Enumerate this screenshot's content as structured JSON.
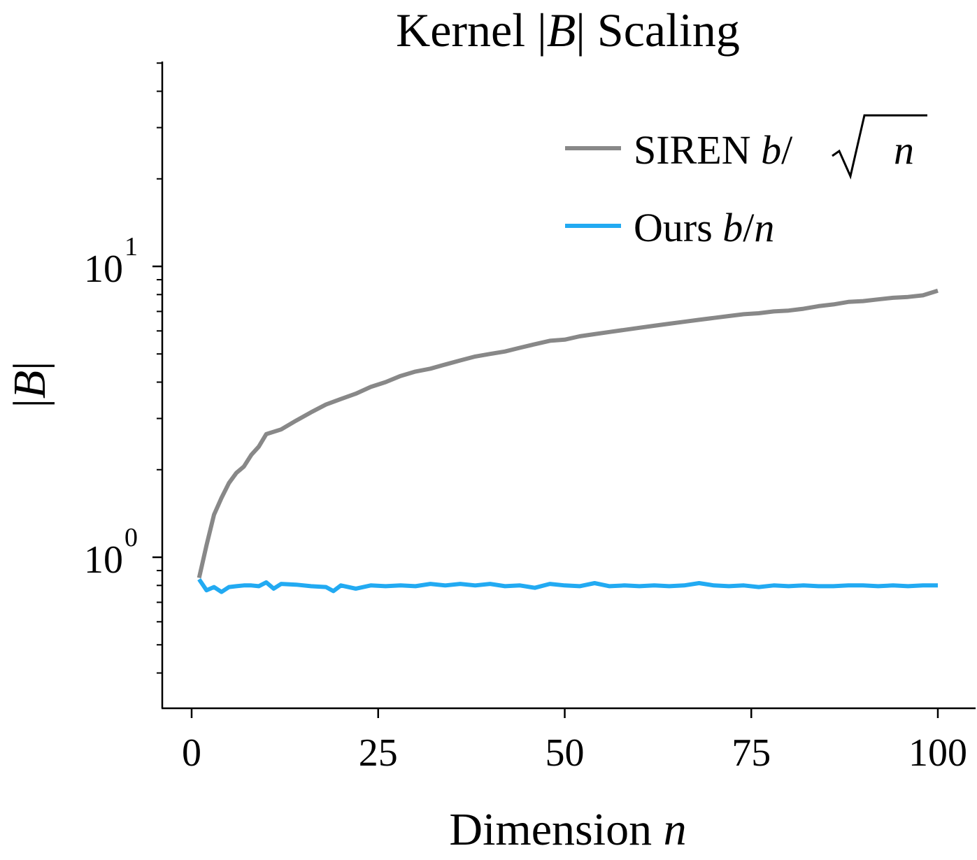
{
  "chart_data": {
    "type": "line",
    "title": {
      "prefix": "Kernel |",
      "symbol": "B",
      "suffix": "| Scaling"
    },
    "xlabel": {
      "text": "Dimension ",
      "var": "n"
    },
    "ylabel": {
      "left": "|",
      "var": "B",
      "right": "|"
    },
    "x_ticks": [
      0,
      25,
      50,
      75,
      100
    ],
    "y_ticks": [
      {
        "base": "10",
        "exp": "0",
        "value": 1
      },
      {
        "base": "10",
        "exp": "1",
        "value": 10
      }
    ],
    "xlim": [
      -2,
      105
    ],
    "ylim": [
      0.35,
      52
    ],
    "y_scale": "log",
    "grid": false,
    "legend_position": "top-right",
    "series": [
      {
        "name": "SIREN b/√n",
        "legend": {
          "text": "SIREN ",
          "b": "b",
          "slash": "/",
          "n": "n"
        },
        "color": "#888888",
        "x": [
          1,
          2,
          3,
          4,
          5,
          6,
          7,
          8,
          9,
          10,
          12,
          14,
          16,
          18,
          20,
          22,
          24,
          26,
          28,
          30,
          32,
          34,
          36,
          38,
          40,
          42,
          44,
          46,
          48,
          50,
          52,
          54,
          56,
          58,
          60,
          62,
          64,
          66,
          68,
          70,
          72,
          74,
          76,
          78,
          80,
          82,
          84,
          86,
          88,
          90,
          92,
          94,
          96,
          98,
          100
        ],
        "y": [
          0.85,
          1.1,
          1.4,
          1.6,
          1.8,
          1.95,
          2.05,
          2.25,
          2.4,
          2.65,
          2.75,
          2.95,
          3.15,
          3.35,
          3.5,
          3.65,
          3.85,
          4.0,
          4.2,
          4.35,
          4.45,
          4.6,
          4.75,
          4.9,
          5.0,
          5.1,
          5.25,
          5.4,
          5.55,
          5.6,
          5.75,
          5.85,
          5.95,
          6.05,
          6.15,
          6.25,
          6.35,
          6.45,
          6.55,
          6.65,
          6.75,
          6.85,
          6.9,
          7.0,
          7.05,
          7.15,
          7.3,
          7.4,
          7.55,
          7.6,
          7.7,
          7.8,
          7.85,
          7.95,
          8.25
        ]
      },
      {
        "name": "Ours b/n",
        "legend": {
          "text": "Ours ",
          "b": "b",
          "slash": "/",
          "n": "n"
        },
        "color": "#22aaf2",
        "x": [
          1,
          2,
          3,
          4,
          5,
          6,
          7,
          8,
          9,
          10,
          11,
          12,
          14,
          16,
          18,
          19,
          20,
          22,
          24,
          26,
          28,
          30,
          32,
          34,
          36,
          38,
          40,
          42,
          44,
          46,
          48,
          50,
          52,
          54,
          56,
          58,
          60,
          62,
          64,
          66,
          68,
          70,
          72,
          74,
          76,
          78,
          80,
          82,
          84,
          86,
          88,
          90,
          92,
          94,
          96,
          98,
          100
        ],
        "y": [
          0.84,
          0.77,
          0.79,
          0.76,
          0.79,
          0.795,
          0.8,
          0.8,
          0.795,
          0.82,
          0.78,
          0.81,
          0.805,
          0.795,
          0.79,
          0.765,
          0.8,
          0.78,
          0.8,
          0.795,
          0.8,
          0.795,
          0.81,
          0.8,
          0.81,
          0.8,
          0.81,
          0.795,
          0.8,
          0.785,
          0.81,
          0.8,
          0.795,
          0.815,
          0.795,
          0.8,
          0.795,
          0.8,
          0.795,
          0.8,
          0.815,
          0.8,
          0.795,
          0.8,
          0.79,
          0.8,
          0.795,
          0.8,
          0.795,
          0.795,
          0.8,
          0.8,
          0.795,
          0.8,
          0.795,
          0.8,
          0.8
        ]
      }
    ]
  }
}
